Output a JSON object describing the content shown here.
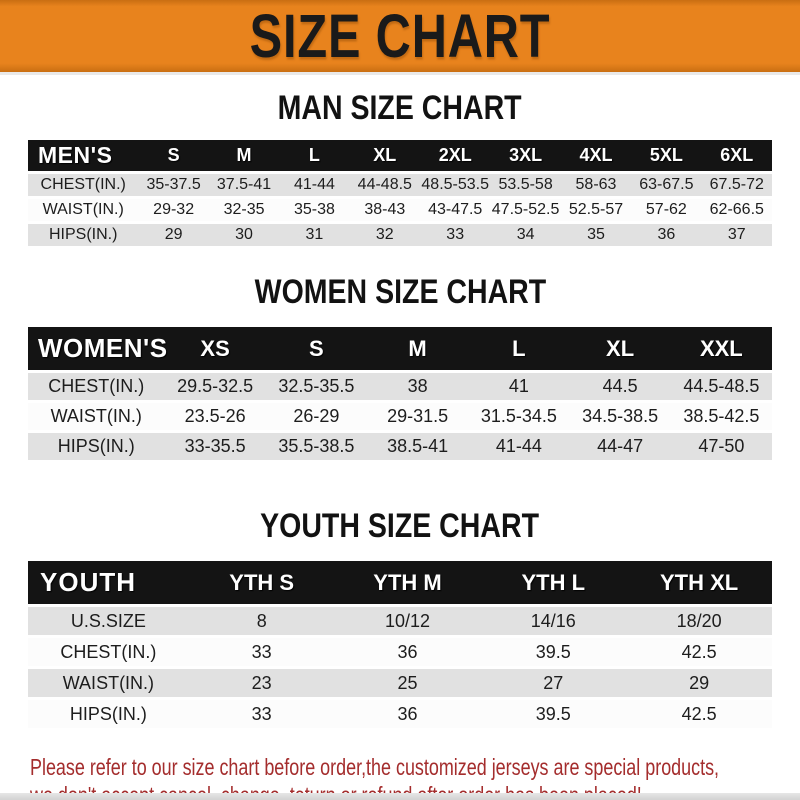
{
  "banner": {
    "title": "SIZE CHART"
  },
  "colors": {
    "banner_orange": "#E8831D",
    "banner_dark": "#C96E12",
    "header_black": "#141414",
    "row_gray": "#E1E1E1",
    "row_white": "#FCFCFC",
    "note_red": "#A42D2D"
  },
  "tables": [
    {
      "heading": "MAN SIZE CHART",
      "header": {
        "label": "MEN'S",
        "columns": [
          "S",
          "M",
          "L",
          "XL",
          "2XL",
          "3XL",
          "4XL",
          "5XL",
          "6XL"
        ]
      },
      "rows": [
        {
          "label": "CHEST(IN.)",
          "values": [
            "35-37.5",
            "37.5-41",
            "41-44",
            "44-48.5",
            "48.5-53.5",
            "53.5-58",
            "58-63",
            "63-67.5",
            "67.5-72"
          ]
        },
        {
          "label": "WAIST(IN.)",
          "values": [
            "29-32",
            "32-35",
            "35-38",
            "38-43",
            "43-47.5",
            "47.5-52.5",
            "52.5-57",
            "57-62",
            "62-66.5"
          ]
        },
        {
          "label": "HIPS(IN.)",
          "values": [
            "29",
            "30",
            "31",
            "32",
            "33",
            "34",
            "35",
            "36",
            "37"
          ]
        }
      ]
    },
    {
      "heading": "WOMEN SIZE CHART",
      "header": {
        "label": "WOMEN'S",
        "columns": [
          "XS",
          "S",
          "M",
          "L",
          "XL",
          "XXL"
        ]
      },
      "rows": [
        {
          "label": "CHEST(IN.)",
          "values": [
            "29.5-32.5",
            "32.5-35.5",
            "38",
            "41",
            "44.5",
            "44.5-48.5"
          ]
        },
        {
          "label": "WAIST(IN.)",
          "values": [
            "23.5-26",
            "26-29",
            "29-31.5",
            "31.5-34.5",
            "34.5-38.5",
            "38.5-42.5"
          ]
        },
        {
          "label": "HIPS(IN.)",
          "values": [
            "33-35.5",
            "35.5-38.5",
            "38.5-41",
            "41-44",
            "44-47",
            "47-50"
          ]
        }
      ]
    },
    {
      "heading": "YOUTH SIZE CHART",
      "header": {
        "label": "YOUTH",
        "columns": [
          "YTH S",
          "YTH M",
          "YTH L",
          "YTH XL"
        ]
      },
      "rows": [
        {
          "label": "U.S.SIZE",
          "values": [
            "8",
            "10/12",
            "14/16",
            "18/20"
          ]
        },
        {
          "label": "CHEST(IN.)",
          "values": [
            "33",
            "36",
            "39.5",
            "42.5"
          ]
        },
        {
          "label": "WAIST(IN.)",
          "values": [
            "23",
            "25",
            "27",
            "29"
          ]
        },
        {
          "label": "HIPS(IN.)",
          "values": [
            "33",
            "36",
            "39.5",
            "42.5"
          ]
        }
      ]
    }
  ],
  "footer_note": {
    "line1": "Please refer to our size chart before order,the customized jerseys are special products,",
    "line2": "we don't accept cancel, change, teturn or refund after order has been placed!"
  }
}
